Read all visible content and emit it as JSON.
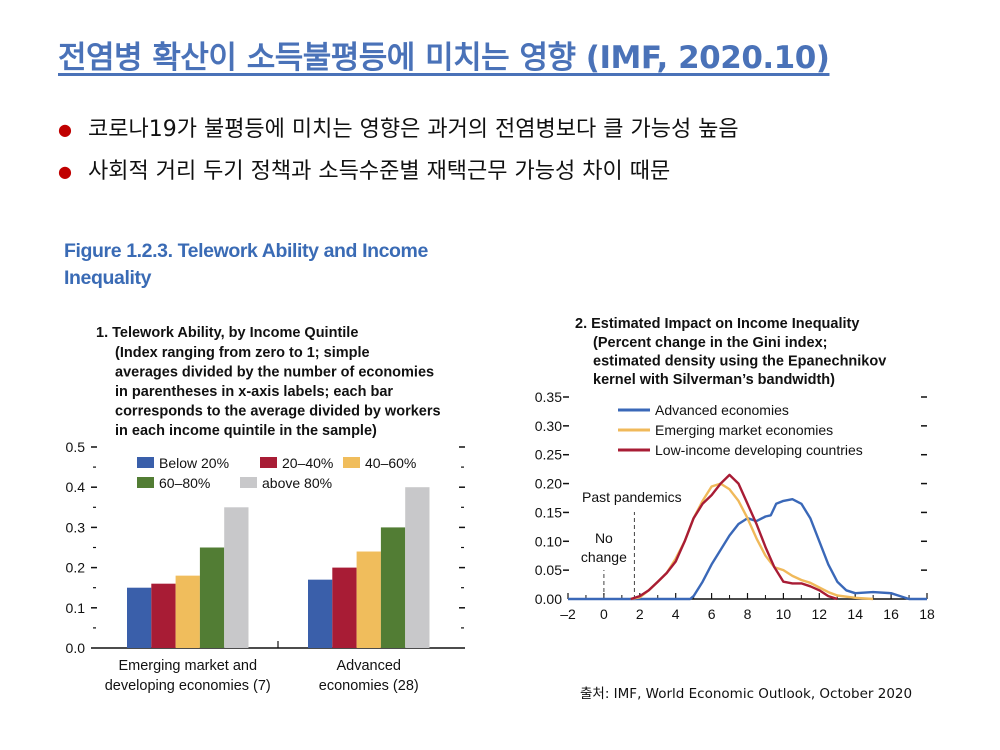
{
  "slide": {
    "title": "전염병 확산이 소득불평등에 미치는 영향 (IMF, 2020.10)",
    "bullets": [
      "코로나19가 불평등에 미치는 영향은 과거의 전염병보다 클 가능성 높음",
      "사회적 거리 두기 정책과 소득수준별 재택근무 가능성 차이 때문"
    ],
    "figure_title_line1": "Figure 1.2.3.  Telework Ability and Income",
    "figure_title_line2": "Inequality",
    "source": "출처: IMF, World Economic Outlook, October 2020",
    "bullet_color": "#c00000",
    "title_color": "#4a72b8"
  },
  "chart_data": [
    {
      "type": "bar",
      "title": "1. Telework Ability, by Income Quintile",
      "subtitle_lines": [
        "(Index ranging from zero to 1; simple",
        "averages divided by the number of economies",
        "in parentheses in x-axis labels; each bar",
        "corresponds to the average divided by workers",
        "in each income quintile in the sample)"
      ],
      "categories": [
        [
          "Emerging market and",
          "developing economies (7)"
        ],
        [
          "Advanced",
          "economies (28)"
        ]
      ],
      "series": [
        {
          "name": "Below 20%",
          "color": "#3a5faa",
          "values": [
            0.15,
            0.17
          ]
        },
        {
          "name": "20–40%",
          "color": "#a81c35",
          "values": [
            0.16,
            0.2
          ]
        },
        {
          "name": "40–60%",
          "color": "#f0bd5c",
          "values": [
            0.18,
            0.24
          ]
        },
        {
          "name": "60–80%",
          "color": "#527d34",
          "values": [
            0.25,
            0.3
          ]
        },
        {
          "name": "above 80%",
          "color": "#c8c8ca",
          "values": [
            0.35,
            0.4
          ]
        }
      ],
      "ylim": [
        0,
        0.5
      ],
      "yticks": [
        "0.0",
        "0.1",
        "0.2",
        "0.3",
        "0.4",
        "0.5"
      ],
      "legend": "top"
    },
    {
      "type": "line",
      "title": "2. Estimated Impact on Income Inequality",
      "subtitle_lines": [
        "(Percent change in the Gini index;",
        "estimated density using the Epanechnikov",
        "kernel with Silverman’s bandwidth)"
      ],
      "xlim": [
        -2,
        18
      ],
      "ylim": [
        0,
        0.35
      ],
      "xticks": [
        "–2",
        "0",
        "2",
        "4",
        "6",
        "8",
        "10",
        "12",
        "14",
        "16",
        "18"
      ],
      "yticks": [
        "0.00",
        "0.05",
        "0.10",
        "0.15",
        "0.20",
        "0.25",
        "0.30",
        "0.35"
      ],
      "annotations": {
        "no_change": [
          "No",
          "change"
        ],
        "no_change_x": 0,
        "past_pandemics": "Past pandemics",
        "past_pandemics_x": 1.7
      },
      "legend": "top",
      "series": [
        {
          "name": "Advanced economies",
          "color": "#3a68b8",
          "points": [
            [
              -2,
              0
            ],
            [
              4.8,
              0
            ],
            [
              5,
              0.005
            ],
            [
              5.5,
              0.03
            ],
            [
              6,
              0.06
            ],
            [
              6.5,
              0.085
            ],
            [
              7,
              0.11
            ],
            [
              7.5,
              0.13
            ],
            [
              8,
              0.14
            ],
            [
              8.5,
              0.135
            ],
            [
              9,
              0.143
            ],
            [
              9.3,
              0.145
            ],
            [
              9.6,
              0.165
            ],
            [
              10,
              0.17
            ],
            [
              10.5,
              0.173
            ],
            [
              11,
              0.165
            ],
            [
              11.5,
              0.14
            ],
            [
              12,
              0.1
            ],
            [
              12.5,
              0.06
            ],
            [
              13,
              0.03
            ],
            [
              13.5,
              0.015
            ],
            [
              14,
              0.01
            ],
            [
              15,
              0.012
            ],
            [
              16,
              0.01
            ],
            [
              16.5,
              0.005
            ],
            [
              17,
              0
            ],
            [
              18,
              0
            ]
          ]
        },
        {
          "name": "Emerging market economies",
          "color": "#f0b95a",
          "points": [
            [
              1.5,
              0
            ],
            [
              2,
              0.003
            ],
            [
              2.5,
              0.015
            ],
            [
              3,
              0.03
            ],
            [
              3.5,
              0.045
            ],
            [
              4,
              0.07
            ],
            [
              4.5,
              0.1
            ],
            [
              5,
              0.14
            ],
            [
              5.5,
              0.17
            ],
            [
              6,
              0.195
            ],
            [
              6.5,
              0.2
            ],
            [
              7,
              0.19
            ],
            [
              7.5,
              0.17
            ],
            [
              8,
              0.14
            ],
            [
              8.5,
              0.105
            ],
            [
              9,
              0.075
            ],
            [
              9.5,
              0.055
            ],
            [
              10,
              0.05
            ],
            [
              10.5,
              0.04
            ],
            [
              11,
              0.033
            ],
            [
              11.5,
              0.028
            ],
            [
              12,
              0.02
            ],
            [
              12.5,
              0.012
            ],
            [
              13,
              0.006
            ],
            [
              14,
              0.002
            ],
            [
              15,
              0
            ]
          ]
        },
        {
          "name": "Low-income developing countries",
          "color": "#a81c35",
          "points": [
            [
              1.5,
              0
            ],
            [
              2,
              0.005
            ],
            [
              2.5,
              0.015
            ],
            [
              3,
              0.03
            ],
            [
              3.5,
              0.045
            ],
            [
              4,
              0.065
            ],
            [
              4.5,
              0.1
            ],
            [
              5,
              0.14
            ],
            [
              5.5,
              0.165
            ],
            [
              6,
              0.18
            ],
            [
              6.5,
              0.2
            ],
            [
              7,
              0.215
            ],
            [
              7.5,
              0.2
            ],
            [
              8,
              0.165
            ],
            [
              8.5,
              0.13
            ],
            [
              9,
              0.09
            ],
            [
              9.5,
              0.055
            ],
            [
              10,
              0.03
            ],
            [
              10.5,
              0.027
            ],
            [
              11,
              0.027
            ],
            [
              11.5,
              0.022
            ],
            [
              12,
              0.015
            ],
            [
              12.5,
              0.005
            ],
            [
              13,
              0
            ]
          ]
        }
      ]
    }
  ]
}
